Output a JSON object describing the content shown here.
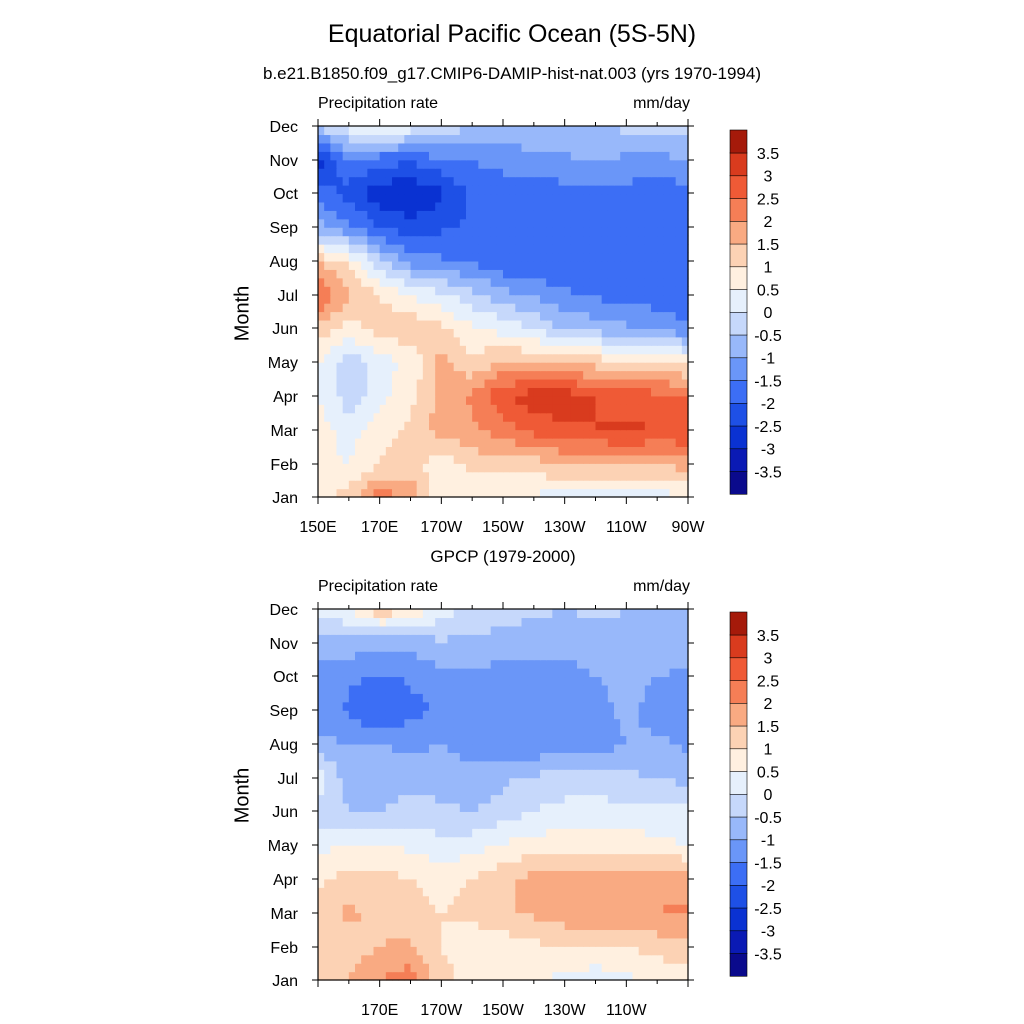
{
  "title": "Equatorial Pacific Ocean (5S-5N)",
  "subtitle": "b.e21.B1850.f09_g17.CMIP6-DAMIP-hist-nat.003 (yrs 1970-1994)",
  "chart_data": [
    {
      "type": "heatmap",
      "panel_title": "",
      "left_label": "Precipitation rate",
      "right_label": "mm/day",
      "ylabel": "Month",
      "x_tick_labels": [
        "150E",
        "170E",
        "170W",
        "150W",
        "130W",
        "110W",
        "90W"
      ],
      "y_tick_labels": [
        "Jan",
        "Feb",
        "Mar",
        "Apr",
        "May",
        "Jun",
        "Jul",
        "Aug",
        "Sep",
        "Oct",
        "Nov",
        "Dec"
      ],
      "x_range": [
        "150E",
        "90W"
      ],
      "colorbar_labels": [
        "3.5",
        "3",
        "2.5",
        "2",
        "1.5",
        "1",
        "0.5",
        "0",
        "-0.5",
        "-1",
        "-1.5",
        "-2",
        "-2.5",
        "-3",
        "-3.5"
      ],
      "x": [
        150,
        160,
        170,
        180,
        190,
        200,
        210,
        220,
        230,
        240,
        250,
        260,
        270
      ],
      "values": [
        [
          0.8,
          1.2,
          2.3,
          1.8,
          0.6,
          0.5,
          0.5,
          0.4,
          0.3,
          0.2,
          0.3,
          0.3,
          0.4
        ],
        [
          0.6,
          0.5,
          1.0,
          1.3,
          0.6,
          1.2,
          1.2,
          1.3,
          1.5,
          1.6,
          1.6,
          1.6,
          1.7
        ],
        [
          0.7,
          0.3,
          0.8,
          1.1,
          1.8,
          1.9,
          2.3,
          2.7,
          2.9,
          3.0,
          3.1,
          3.0,
          3.0
        ],
        [
          0.5,
          -0.3,
          0.3,
          0.9,
          1.6,
          2.1,
          2.9,
          3.3,
          3.3,
          3.0,
          2.8,
          2.7,
          2.6
        ],
        [
          0.6,
          -0.4,
          0.3,
          0.6,
          1.7,
          1.1,
          1.6,
          1.5,
          1.4,
          1.3,
          1.1,
          1.0,
          0.8
        ],
        [
          1.3,
          0.8,
          1.2,
          1.4,
          1.1,
          0.6,
          0.3,
          0.0,
          -0.6,
          -0.7,
          -0.9,
          -1.1,
          -1.4
        ],
        [
          2.7,
          1.5,
          1.0,
          0.5,
          0.1,
          -0.3,
          -0.8,
          -1.1,
          -1.4,
          -1.6,
          -1.7,
          -1.8,
          -1.9
        ],
        [
          1.4,
          0.9,
          -0.4,
          -1.2,
          -1.4,
          -1.6,
          -1.9,
          -2.0,
          -2.0,
          -2.0,
          -2.0,
          -2.0,
          -2.0
        ],
        [
          -0.8,
          -1.4,
          -2.0,
          -2.3,
          -2.1,
          -1.9,
          -1.9,
          -1.9,
          -1.9,
          -1.9,
          -1.9,
          -1.9,
          -1.9
        ],
        [
          -1.7,
          -2.2,
          -2.8,
          -3.0,
          -2.6,
          -1.9,
          -1.8,
          -1.8,
          -1.7,
          -1.6,
          -1.7,
          -1.8,
          -1.7
        ],
        [
          -2.8,
          -1.6,
          -1.8,
          -1.9,
          -1.6,
          -1.5,
          -1.3,
          -1.2,
          -1.1,
          -1.0,
          -1.1,
          -1.3,
          -0.9
        ],
        [
          -0.4,
          0.3,
          0.6,
          0.3,
          -0.1,
          -0.5,
          -0.6,
          -0.6,
          -0.5,
          -0.5,
          -0.4,
          -0.3,
          -0.3
        ]
      ]
    },
    {
      "type": "heatmap",
      "panel_title": "GPCP (1979-2000)",
      "left_label": "Precipitation rate",
      "right_label": "mm/day",
      "ylabel": "Month",
      "x_tick_labels": [
        "170E",
        "170W",
        "150W",
        "130W",
        "110W"
      ],
      "y_tick_labels": [
        "Jan",
        "Feb",
        "Mar",
        "Apr",
        "May",
        "Jun",
        "Jul",
        "Aug",
        "Sep",
        "Oct",
        "Nov",
        "Dec"
      ],
      "x_range": [
        "150E",
        "90W"
      ],
      "colorbar_labels": [
        "3.5",
        "3",
        "2.5",
        "2",
        "1.5",
        "1",
        "0.5",
        "0",
        "-0.5",
        "-1",
        "-1.5",
        "-2",
        "-2.5",
        "-3",
        "-3.5"
      ],
      "x": [
        150,
        160,
        170,
        180,
        190,
        200,
        210,
        220,
        230,
        240,
        250,
        260,
        270
      ],
      "values": [
        [
          1.0,
          1.5,
          2.0,
          2.3,
          1.2,
          0.8,
          0.6,
          0.5,
          0.4,
          0.2,
          0.4,
          0.6,
          0.7
        ],
        [
          1.0,
          1.2,
          1.5,
          1.6,
          1.0,
          0.6,
          0.7,
          0.9,
          1.0,
          0.9,
          1.0,
          1.2,
          1.3
        ],
        [
          1.2,
          1.6,
          1.4,
          1.2,
          1.0,
          1.2,
          1.4,
          1.6,
          1.8,
          1.9,
          1.9,
          2.0,
          2.1
        ],
        [
          0.9,
          1.2,
          1.2,
          1.0,
          0.8,
          1.0,
          1.3,
          1.7,
          1.9,
          1.8,
          1.7,
          1.8,
          1.8
        ],
        [
          0.3,
          0.6,
          0.5,
          0.4,
          0.2,
          0.3,
          0.6,
          0.7,
          0.8,
          0.8,
          0.7,
          0.6,
          0.5
        ],
        [
          -0.2,
          -0.5,
          -0.5,
          -0.3,
          -0.4,
          -0.5,
          -0.3,
          0.0,
          0.2,
          0.2,
          0.2,
          0.3,
          0.2
        ],
        [
          0.3,
          -0.8,
          -0.8,
          -0.7,
          -0.7,
          -0.8,
          -0.6,
          -0.4,
          -0.3,
          -0.3,
          -0.4,
          -0.5,
          -0.7
        ],
        [
          -0.8,
          -1.0,
          -1.0,
          -1.1,
          -1.0,
          -1.2,
          -1.4,
          -1.4,
          -1.3,
          -1.2,
          -1.0,
          -0.9,
          -1.1
        ],
        [
          -1.3,
          -1.6,
          -2.0,
          -1.7,
          -1.4,
          -1.3,
          -1.4,
          -1.4,
          -1.3,
          -1.2,
          -0.9,
          -1.2,
          -1.3
        ],
        [
          -1.2,
          -1.4,
          -1.6,
          -1.4,
          -1.2,
          -1.2,
          -1.2,
          -1.3,
          -1.2,
          -1.0,
          -0.8,
          -1.0,
          -1.1
        ],
        [
          -0.8,
          -0.7,
          -0.9,
          -0.8,
          -0.6,
          -0.6,
          -0.7,
          -0.8,
          -0.8,
          -0.7,
          -0.6,
          -0.7,
          -0.8
        ],
        [
          0.2,
          0.5,
          1.4,
          1.0,
          0.3,
          -0.2,
          -0.3,
          -0.4,
          -0.5,
          -0.4,
          -0.5,
          -0.6,
          -0.6
        ]
      ]
    }
  ]
}
